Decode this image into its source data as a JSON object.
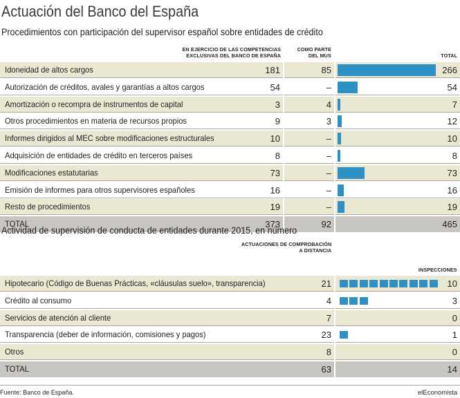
{
  "title": "Actuación del Banco del España",
  "chart_data": [
    {
      "type": "table",
      "title": "Procedimientos con participación del supervisor español sobre entidades de crédito",
      "columns": [
        [
          "EN EJERCICIO DE LAS COMPETENCIAS",
          "EXCLUSIVAS DEL BANCO DE ESPAÑA"
        ],
        [
          "COMO PARTE",
          "DEL MUS"
        ],
        [
          "TOTAL"
        ]
      ],
      "rows": [
        {
          "label": "Idoneidad de altos cargos",
          "exclusive": "181",
          "mus": "85",
          "total": "266",
          "value": 266
        },
        {
          "label": "Autorización de créditos, avales y garantías a altos cargos",
          "exclusive": "54",
          "mus": "–",
          "total": "54",
          "value": 54
        },
        {
          "label": "Amortización o recompra de instrumentos de capital",
          "exclusive": "3",
          "mus": "4",
          "total": "7",
          "value": 7
        },
        {
          "label": "Otros procedimientos en materia de recursos propios",
          "exclusive": "9",
          "mus": "3",
          "total": "12",
          "value": 12
        },
        {
          "label": "Informes dirigidos al MEC sobre modificaciones estructurales",
          "exclusive": "10",
          "mus": "–",
          "total": "10",
          "value": 10
        },
        {
          "label": "Adquisición de entidades de crédito en terceros países",
          "exclusive": "8",
          "mus": "–",
          "total": "8",
          "value": 8
        },
        {
          "label": "Modificaciones estatutarias",
          "exclusive": "73",
          "mus": "–",
          "total": "73",
          "value": 73
        },
        {
          "label": "Emisión de informes para otros supervisores españoles",
          "exclusive": "16",
          "mus": "–",
          "total": "16",
          "value": 16
        },
        {
          "label": "Resto de procedimientos",
          "exclusive": "19",
          "mus": "–",
          "total": "19",
          "value": 19
        }
      ],
      "total_row": {
        "label": "TOTAL",
        "exclusive": "373",
        "mus": "92",
        "total": "465"
      },
      "bar_max": 266
    },
    {
      "type": "table",
      "title": "Actividad de supervisión de conducta de entidades durante 2015, en número",
      "columns": [
        [
          "ACTUACIONES DE COMPROBACIÓN",
          "A DISTANCIA"
        ],
        [
          "INSPECCIONES"
        ]
      ],
      "rows": [
        {
          "label": "Hipotecario (Código de Buenas Prácticas, «cláusulas suelo», transparencia)",
          "remote": "21",
          "inspections": "10",
          "value": 10
        },
        {
          "label": "Crédito al consumo",
          "remote": "4",
          "inspections": "3",
          "value": 3
        },
        {
          "label": "Servicios de atención al cliente",
          "remote": "7",
          "inspections": "0",
          "value": 0
        },
        {
          "label": "Transparencia (deber de información, comisiones y pagos)",
          "remote": "23",
          "inspections": "1",
          "value": 1
        },
        {
          "label": "Otros",
          "remote": "8",
          "inspections": "0",
          "value": 0
        }
      ],
      "total_row": {
        "label": "TOTAL",
        "remote": "63",
        "inspections": "14"
      }
    }
  ],
  "source": "Fuente: Banco de España.",
  "brand": "elEconomista",
  "colors": {
    "bar": "#2f90c4",
    "shaded_row": "#eae7d3",
    "total_row": "#c7c6c0",
    "rule": "#a8a59a"
  }
}
